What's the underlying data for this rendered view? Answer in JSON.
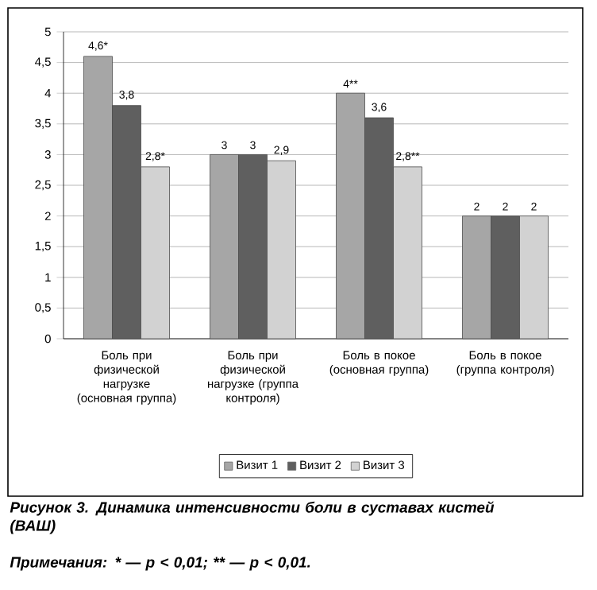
{
  "chart_data": {
    "type": "bar",
    "categories": [
      "Боль при физической нагрузке (основная группа)",
      "Боль при физической нагрузке (группа контроля)",
      "Боль в покое (основная группа)",
      "Боль в покое (группа контроля)"
    ],
    "series": [
      {
        "name": "Визит 1",
        "color": "#a6a6a6",
        "values": [
          4.6,
          3,
          4,
          2
        ],
        "value_labels": [
          "4,6*",
          "3",
          "4**",
          "2"
        ]
      },
      {
        "name": "Визит 2",
        "color": "#5f5f5f",
        "values": [
          3.8,
          3,
          3.6,
          2
        ],
        "value_labels": [
          "3,8",
          "3",
          "3,6",
          "2"
        ]
      },
      {
        "name": "Визит 3",
        "color": "#d2d2d2",
        "values": [
          2.8,
          2.9,
          2.8,
          2
        ],
        "value_labels": [
          "2,8*",
          "2,9",
          "2,8**",
          "2"
        ]
      }
    ],
    "ylim": [
      0,
      5
    ],
    "yticks": [
      0,
      {
        "value": 0.5,
        "label": "0,5"
      },
      1,
      {
        "value": 1.5,
        "label": "1,5"
      },
      2,
      {
        "value": 2.5,
        "label": "2,5"
      },
      3,
      {
        "value": 3.5,
        "label": "3,5"
      },
      4,
      {
        "value": 4.5,
        "label": "4,5"
      },
      5
    ],
    "grid": "y",
    "legend": "bottom",
    "annotations": [
      "Рисунок 3. Динамика интенсивности боли в суставах кистей (ВАШ)",
      "Примечания: * — p < 0,01; ** — p < 0,01."
    ]
  }
}
